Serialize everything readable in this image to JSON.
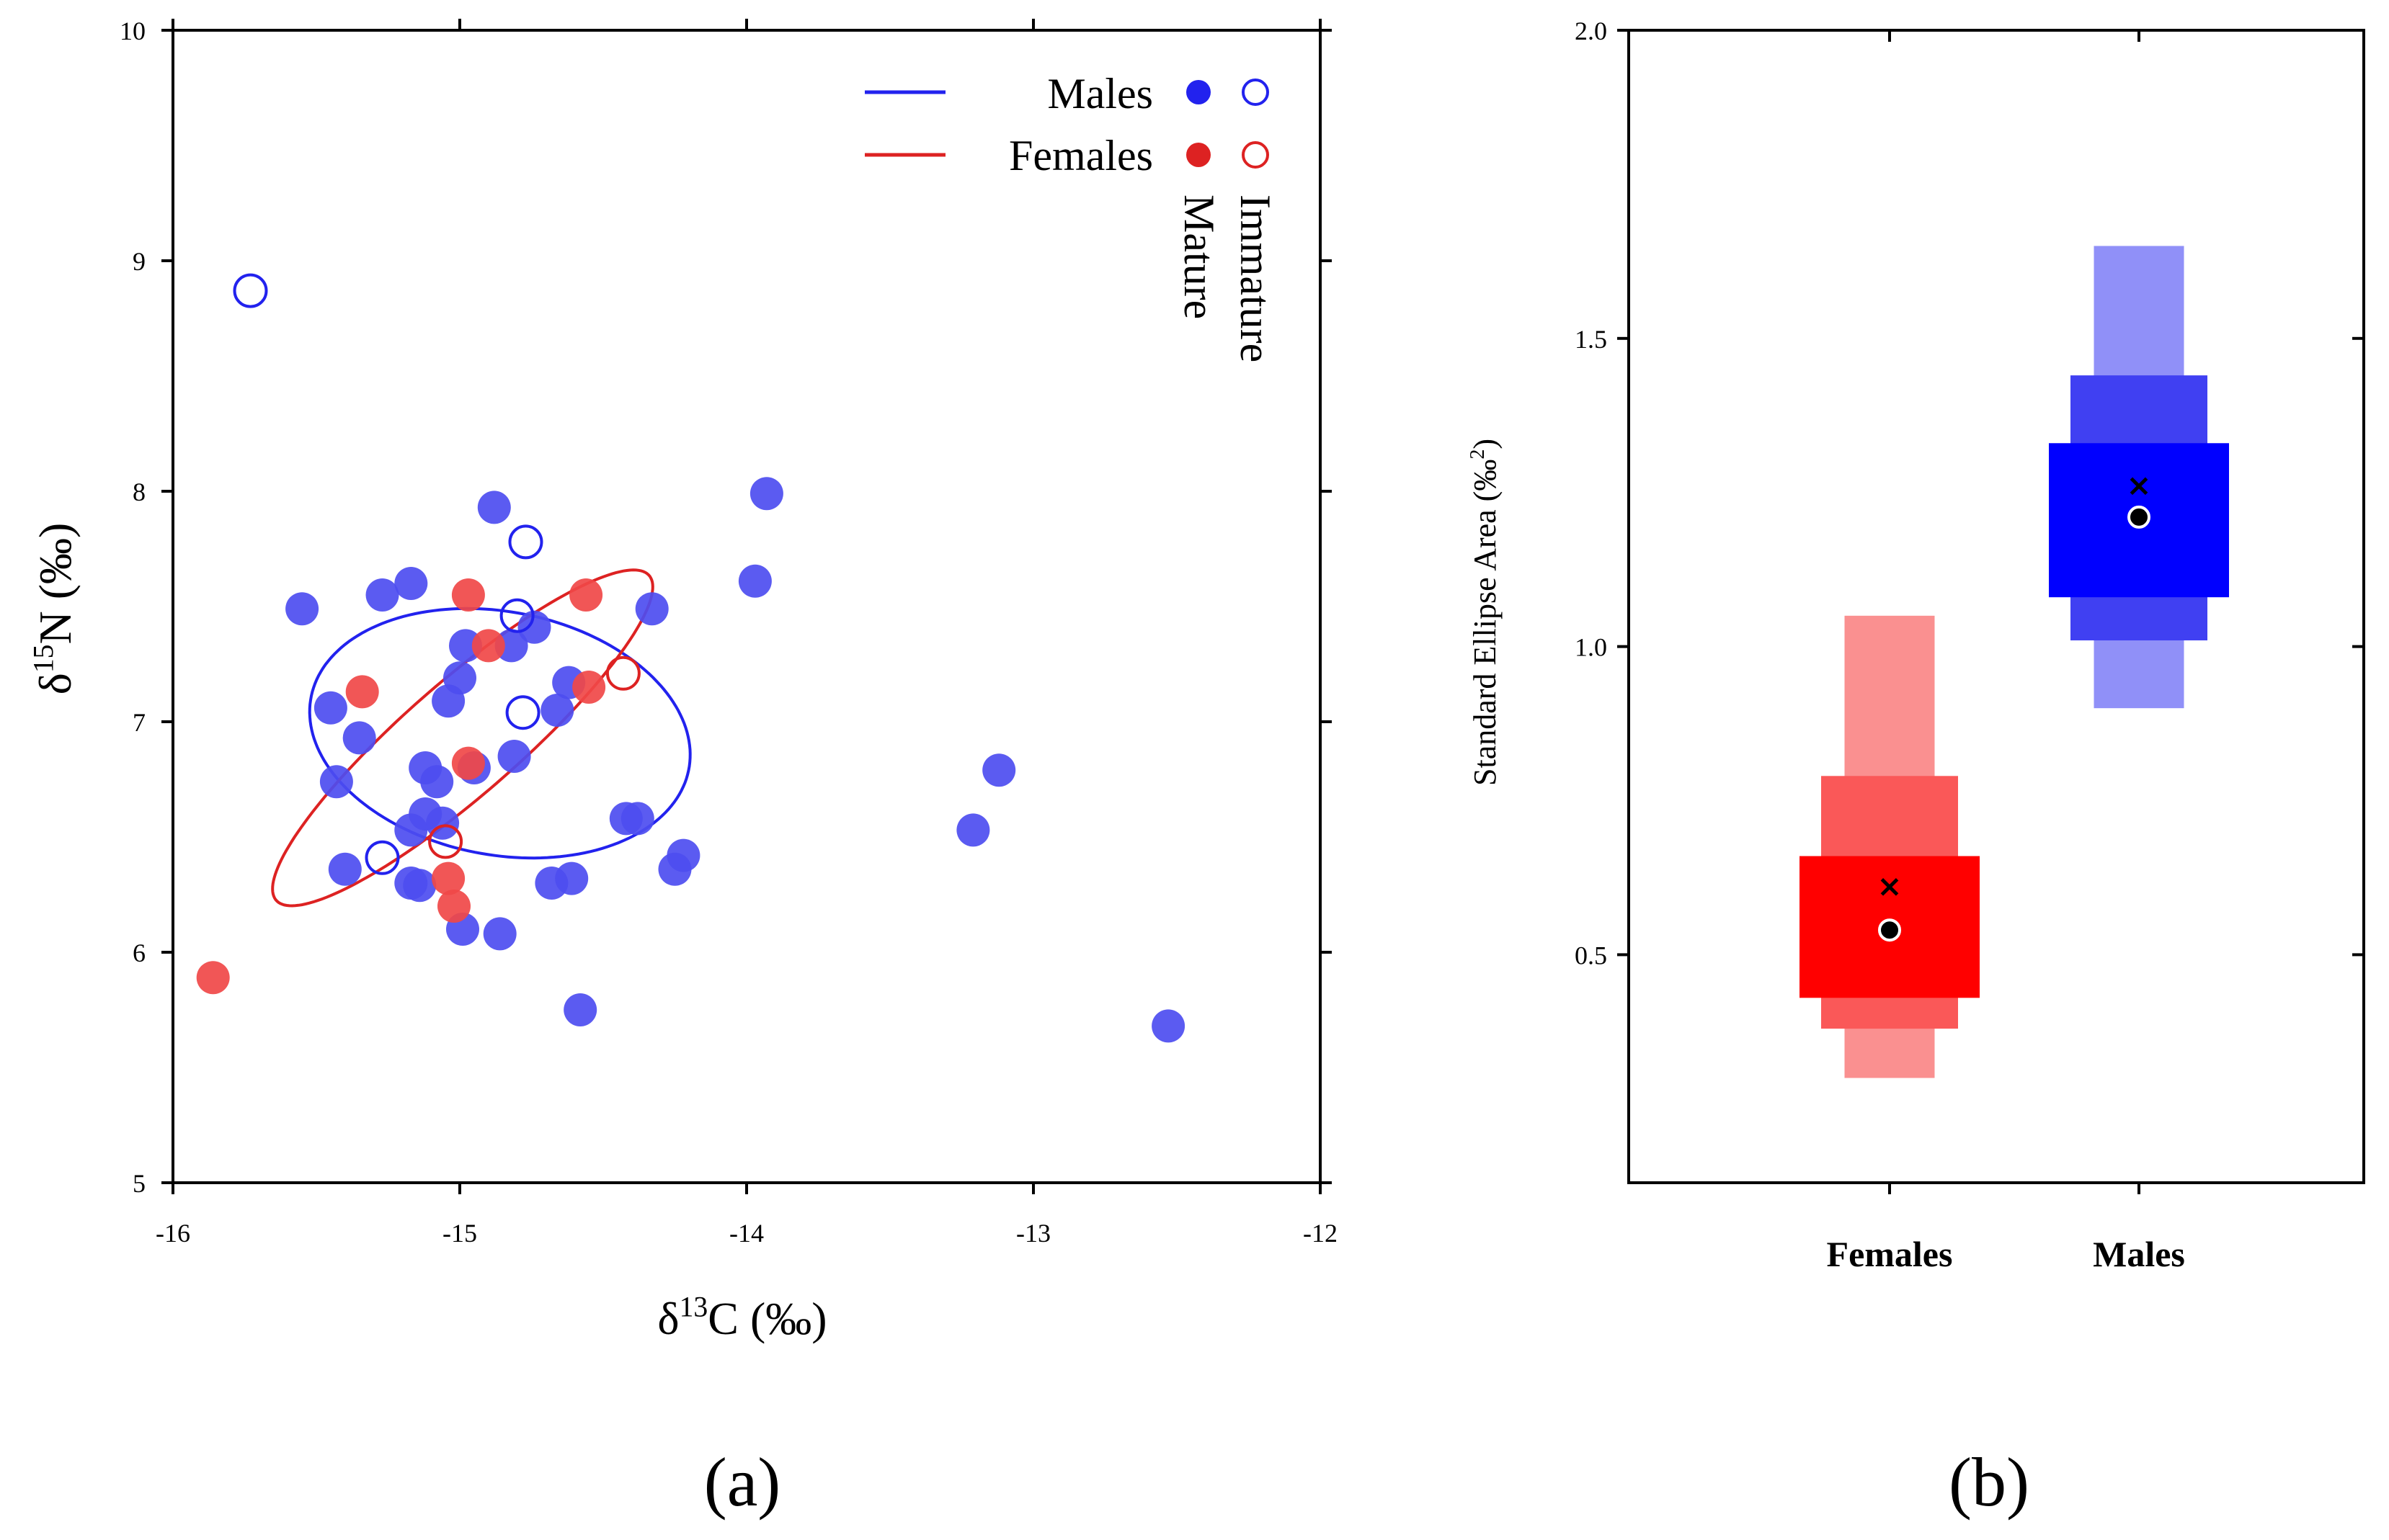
{
  "colors": {
    "male": "#2222ee",
    "male_point": "#4d4df0",
    "female": "#dd2222",
    "female_point": "#f04848",
    "male_box": [
      "#9090f8",
      "#4040f2",
      "#0000ff"
    ],
    "female_box": [
      "#fa9090",
      "#fa5858",
      "#ff0000"
    ]
  },
  "chart_data": [
    {
      "type": "scatter",
      "panel_label": "(a)",
      "xlabel": {
        "prefix": "δ",
        "sup": "13",
        "rest": "C (‰)"
      },
      "ylabel": {
        "prefix": "δ",
        "sup": "15",
        "rest": "N (‰)"
      },
      "xlim": [
        -16,
        -12
      ],
      "ylim": [
        5,
        10
      ],
      "xticks": [
        -16,
        -15,
        -14,
        -13,
        -12
      ],
      "yticks": [
        5,
        6,
        7,
        8,
        9,
        10
      ],
      "legend": {
        "males_label": "Males",
        "females_label": "Females",
        "mature_label": "Mature",
        "immature_label": "Immature",
        "position": "top-right"
      },
      "series": [
        {
          "name": "Males mature",
          "color_key": "male_point",
          "filled": true,
          "points": [
            [
              -14.88,
              7.93
            ],
            [
              -13.93,
              7.99
            ],
            [
              -15.17,
              7.6
            ],
            [
              -15.27,
              7.55
            ],
            [
              -15.55,
              7.49
            ],
            [
              -14.33,
              7.49
            ],
            [
              -13.97,
              7.61
            ],
            [
              -14.74,
              7.41
            ],
            [
              -14.98,
              7.33
            ],
            [
              -14.82,
              7.33
            ],
            [
              -15.0,
              7.19
            ],
            [
              -14.62,
              7.17
            ],
            [
              -15.04,
              7.09
            ],
            [
              -14.66,
              7.05
            ],
            [
              -15.45,
              7.06
            ],
            [
              -15.35,
              6.93
            ],
            [
              -15.12,
              6.8
            ],
            [
              -14.95,
              6.8
            ],
            [
              -14.81,
              6.85
            ],
            [
              -15.43,
              6.74
            ],
            [
              -15.08,
              6.74
            ],
            [
              -15.12,
              6.6
            ],
            [
              -15.06,
              6.56
            ],
            [
              -15.17,
              6.53
            ],
            [
              -14.42,
              6.58
            ],
            [
              -14.38,
              6.58
            ],
            [
              -13.21,
              6.53
            ],
            [
              -13.12,
              6.79
            ],
            [
              -15.4,
              6.36
            ],
            [
              -14.22,
              6.42
            ],
            [
              -14.25,
              6.36
            ],
            [
              -15.17,
              6.3
            ],
            [
              -15.14,
              6.29
            ],
            [
              -14.68,
              6.3
            ],
            [
              -14.61,
              6.32
            ],
            [
              -14.99,
              6.1
            ],
            [
              -14.86,
              6.08
            ],
            [
              -14.58,
              5.75
            ],
            [
              -12.53,
              5.68
            ]
          ]
        },
        {
          "name": "Males immature",
          "color_key": "male",
          "filled": false,
          "points": [
            [
              -15.73,
              8.87
            ],
            [
              -14.77,
              7.78
            ],
            [
              -14.8,
              7.46
            ],
            [
              -14.78,
              7.04
            ],
            [
              -15.27,
              6.41
            ]
          ]
        },
        {
          "name": "Females mature",
          "color_key": "female_point",
          "filled": true,
          "points": [
            [
              -14.97,
              7.55
            ],
            [
              -14.56,
              7.55
            ],
            [
              -14.9,
              7.33
            ],
            [
              -15.34,
              7.13
            ],
            [
              -14.55,
              7.15
            ],
            [
              -14.97,
              6.82
            ],
            [
              -15.04,
              6.32
            ],
            [
              -15.02,
              6.2
            ],
            [
              -15.86,
              5.89
            ]
          ]
        },
        {
          "name": "Females immature",
          "color_key": "female",
          "filled": false,
          "points": [
            [
              -14.43,
              7.21
            ],
            [
              -15.05,
              6.48
            ]
          ]
        }
      ],
      "ellipses": [
        {
          "name": "Males",
          "color_key": "male",
          "cx": -14.86,
          "cy": 6.95,
          "a": 0.68,
          "b": 0.52,
          "angle_deg": -20
        },
        {
          "name": "Females",
          "color_key": "female",
          "cx": -14.99,
          "cy": 6.93,
          "a": 0.96,
          "b": 0.22,
          "angle_deg": 48
        }
      ]
    },
    {
      "type": "box",
      "panel_label": "(b)",
      "ylabel": {
        "text": "Standard Ellipse Area (‰",
        "sup": "2",
        "close": ")"
      },
      "ylim": [
        0.13,
        2.0
      ],
      "yticks": [
        0.5,
        1.0,
        1.5,
        2.0
      ],
      "ytick_labels": [
        "0.5",
        "1.0",
        "1.5",
        "2.0"
      ],
      "categories": [
        "Females",
        "Males"
      ],
      "series": [
        {
          "name": "Females",
          "color_key": "female_box",
          "intervals": [
            [
              0.3,
              1.05
            ],
            [
              0.38,
              0.79
            ],
            [
              0.43,
              0.66
            ]
          ],
          "mode": 0.54,
          "mean": 0.61
        },
        {
          "name": "Males",
          "color_key": "male_box",
          "intervals": [
            [
              0.9,
              1.65
            ],
            [
              1.01,
              1.44
            ],
            [
              1.08,
              1.33
            ]
          ],
          "mode": 1.21,
          "mean": 1.26
        }
      ]
    }
  ]
}
